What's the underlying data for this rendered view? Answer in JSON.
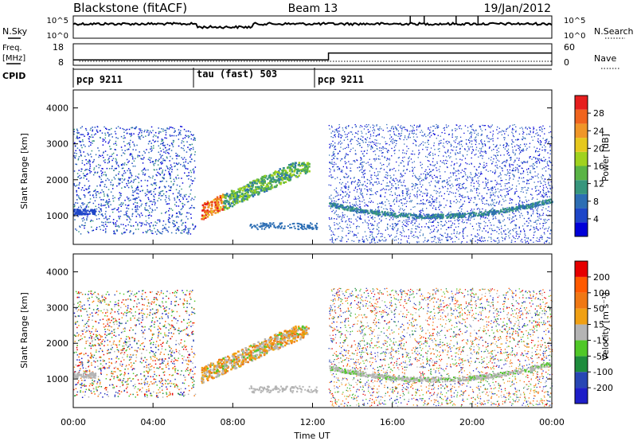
{
  "header": {
    "station": "Blackstone (fitACF)",
    "beam": "Beam 13",
    "date": "19/Jan/2012"
  },
  "panels": {
    "nsky_label": "N.Sky",
    "nsearch_label": "N.Search",
    "nsky_ticks": [
      "10^5",
      "10^0"
    ],
    "nsearch_ticks": [
      "10^5",
      "10^0"
    ],
    "freq_label_1": "Freq.",
    "freq_label_2": "[MHz]",
    "freq_ticks": [
      "18",
      "8"
    ],
    "nave_label": "Nave",
    "nave_ticks": [
      "60",
      "0"
    ],
    "cpid_label": "CPID",
    "cpid_segments": [
      "pcp 9211",
      "tau (fast) 503",
      "pcp 9211"
    ]
  },
  "chart_data": [
    {
      "type": "heatmap",
      "name": "power",
      "ylabel": "Slant Range [km]",
      "yticks": [
        "1000",
        "2000",
        "3000",
        "4000"
      ],
      "ylim": [
        200,
        4500
      ],
      "xlim": [
        0,
        24
      ],
      "colorbar_label": "Power [dB]",
      "colorbar_ticks": [
        "28",
        "24",
        "20",
        "16",
        "12",
        "8",
        "4"
      ],
      "colorbar_range": [
        0,
        32
      ],
      "colorbar_colors": [
        "#0000d8",
        "#1e46c8",
        "#2d6eb4",
        "#37967d",
        "#5ab446",
        "#a0d21e",
        "#e6c81e",
        "#f09628",
        "#f0641e",
        "#e61e1e"
      ]
    },
    {
      "type": "heatmap",
      "name": "velocity",
      "ylabel": "Slant Range [km]",
      "yticks": [
        "1000",
        "2000",
        "3000",
        "4000"
      ],
      "ylim": [
        200,
        4500
      ],
      "xlim": [
        0,
        24
      ],
      "colorbar_label": "Velocity [m s⁻¹]",
      "colorbar_ticks": [
        "200",
        "100",
        "50",
        "15",
        "-15",
        "-50",
        "-100",
        "-200"
      ],
      "colorbar_colors": [
        "#1e1ec8",
        "#2846b4",
        "#1e8c3c",
        "#50c828",
        "#b4b4b4",
        "#f0a014",
        "#f07814",
        "#ff5a00",
        "#e60000"
      ]
    }
  ],
  "xaxis": {
    "ticks": [
      "00:00",
      "04:00",
      "08:00",
      "12:00",
      "16:00",
      "20:00",
      "00:00"
    ],
    "label": "Time UT"
  }
}
